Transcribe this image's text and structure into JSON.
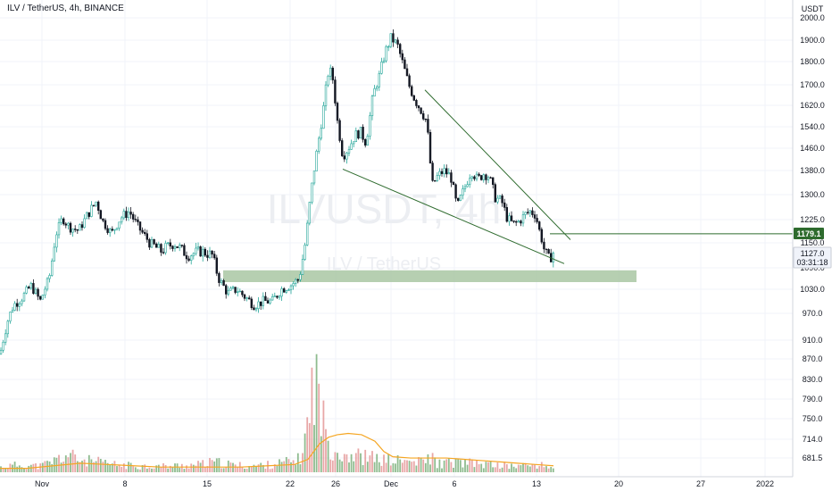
{
  "header": {
    "title": "ILV / TetherUS, 4h, BINANCE"
  },
  "watermark": {
    "symbol": "ILVUSDT, 4h",
    "name": "ILV / TetherUS"
  },
  "price_axis": {
    "currency": "USDT",
    "ticks": [
      "2000.0",
      "1900.0",
      "1800.0",
      "1700.0",
      "1620.0",
      "1540.0",
      "1460.0",
      "1380.0",
      "1300.0",
      "1225.0",
      "1150.0",
      "1090.0",
      "1030.0",
      "970.0",
      "910.0",
      "870.0",
      "830.0",
      "790.0",
      "750.0",
      "714.0",
      "681.5"
    ],
    "level_label": "1179.1",
    "last_price": "1127.0",
    "countdown": "03:31:18"
  },
  "time_axis": {
    "ticks": [
      "Nov",
      "8",
      "15",
      "22",
      "26",
      "Dec",
      "6",
      "13",
      "20",
      "27",
      "2022"
    ]
  },
  "colors": {
    "up": "#26a69a",
    "down": "#131722",
    "volume_up": "#6aa56a",
    "volume_down": "#e08a8a",
    "volume_ma": "#f5a623",
    "trendline": "#2e6b2e",
    "support_zone": "#a9c7a3",
    "grid": "#f0f3fa"
  },
  "chart_data": {
    "type": "candlestick",
    "title": "ILV / TetherUS, 4h, BINANCE",
    "ylabel": "USDT",
    "ylim": [
      650,
      2050
    ],
    "xlim": [
      0,
      925
    ],
    "x_label_positions": [
      47,
      140,
      232,
      325,
      376,
      438,
      509,
      601,
      693,
      785,
      857
    ],
    "close_path": [
      [
        0,
        880
      ],
      [
        8,
        950
      ],
      [
        15,
        990
      ],
      [
        25,
        1010
      ],
      [
        35,
        1040
      ],
      [
        45,
        1000
      ],
      [
        55,
        1060
      ],
      [
        63,
        1180
      ],
      [
        70,
        1230
      ],
      [
        78,
        1200
      ],
      [
        88,
        1190
      ],
      [
        98,
        1240
      ],
      [
        108,
        1280
      ],
      [
        115,
        1220
      ],
      [
        125,
        1180
      ],
      [
        135,
        1230
      ],
      [
        145,
        1250
      ],
      [
        155,
        1200
      ],
      [
        168,
        1150
      ],
      [
        180,
        1130
      ],
      [
        195,
        1150
      ],
      [
        210,
        1120
      ],
      [
        225,
        1130
      ],
      [
        238,
        1120
      ],
      [
        245,
        1060
      ],
      [
        255,
        1020
      ],
      [
        265,
        1030
      ],
      [
        275,
        1010
      ],
      [
        285,
        990
      ],
      [
        295,
        1000
      ],
      [
        305,
        1000
      ],
      [
        315,
        1030
      ],
      [
        325,
        1040
      ],
      [
        335,
        1060
      ],
      [
        342,
        1150
      ],
      [
        348,
        1300
      ],
      [
        355,
        1450
      ],
      [
        362,
        1600
      ],
      [
        368,
        1760
      ],
      [
        372,
        1750
      ],
      [
        378,
        1560
      ],
      [
        384,
        1430
      ],
      [
        392,
        1470
      ],
      [
        398,
        1510
      ],
      [
        404,
        1520
      ],
      [
        410,
        1480
      ],
      [
        418,
        1660
      ],
      [
        425,
        1740
      ],
      [
        432,
        1850
      ],
      [
        438,
        1910
      ],
      [
        445,
        1880
      ],
      [
        452,
        1780
      ],
      [
        458,
        1700
      ],
      [
        465,
        1640
      ],
      [
        472,
        1600
      ],
      [
        478,
        1560
      ],
      [
        484,
        1330
      ],
      [
        490,
        1360
      ],
      [
        497,
        1380
      ],
      [
        505,
        1360
      ],
      [
        512,
        1260
      ],
      [
        520,
        1320
      ],
      [
        528,
        1380
      ],
      [
        535,
        1350
      ],
      [
        542,
        1370
      ],
      [
        548,
        1360
      ],
      [
        555,
        1290
      ],
      [
        562,
        1280
      ],
      [
        568,
        1230
      ],
      [
        575,
        1210
      ],
      [
        582,
        1220
      ],
      [
        588,
        1240
      ],
      [
        594,
        1250
      ],
      [
        600,
        1240
      ],
      [
        605,
        1180
      ],
      [
        610,
        1130
      ],
      [
        615,
        1110
      ],
      [
        620,
        1127
      ]
    ],
    "volume_path": [
      [
        0,
        4
      ],
      [
        20,
        6
      ],
      [
        45,
        5
      ],
      [
        60,
        9
      ],
      [
        75,
        14
      ],
      [
        90,
        10
      ],
      [
        110,
        8
      ],
      [
        130,
        6
      ],
      [
        160,
        5
      ],
      [
        190,
        5
      ],
      [
        220,
        6
      ],
      [
        240,
        8
      ],
      [
        260,
        6
      ],
      [
        280,
        5
      ],
      [
        300,
        6
      ],
      [
        320,
        8
      ],
      [
        335,
        10
      ],
      [
        343,
        30
      ],
      [
        347,
        45
      ],
      [
        350,
        70
      ],
      [
        352,
        90
      ],
      [
        354,
        70
      ],
      [
        358,
        60
      ],
      [
        362,
        40
      ],
      [
        366,
        28
      ],
      [
        372,
        22
      ],
      [
        380,
        16
      ],
      [
        395,
        14
      ],
      [
        410,
        12
      ],
      [
        430,
        10
      ],
      [
        450,
        9
      ],
      [
        470,
        8
      ],
      [
        484,
        12
      ],
      [
        490,
        7
      ],
      [
        510,
        8
      ],
      [
        530,
        7
      ],
      [
        555,
        6
      ],
      [
        575,
        5
      ],
      [
        600,
        6
      ],
      [
        620,
        4
      ]
    ],
    "volume_ma": [
      [
        0,
        3
      ],
      [
        30,
        3
      ],
      [
        60,
        5
      ],
      [
        90,
        7
      ],
      [
        120,
        6
      ],
      [
        150,
        5
      ],
      [
        180,
        4
      ],
      [
        210,
        4
      ],
      [
        240,
        4
      ],
      [
        270,
        4
      ],
      [
        300,
        5
      ],
      [
        330,
        6
      ],
      [
        345,
        10
      ],
      [
        358,
        22
      ],
      [
        368,
        27
      ],
      [
        378,
        29
      ],
      [
        390,
        30
      ],
      [
        405,
        29
      ],
      [
        420,
        24
      ],
      [
        430,
        16
      ],
      [
        440,
        12
      ],
      [
        460,
        11
      ],
      [
        480,
        11
      ],
      [
        500,
        11
      ],
      [
        520,
        10
      ],
      [
        540,
        9
      ],
      [
        560,
        8
      ],
      [
        580,
        7
      ],
      [
        600,
        6
      ],
      [
        620,
        5
      ]
    ],
    "trendlines": [
      {
        "from": [
          384,
          1385
        ],
        "to": [
          632,
          1100
        ]
      },
      {
        "from": [
          476,
          1680
        ],
        "to": [
          639,
          1160
        ]
      }
    ],
    "support_zone": {
      "x": [
        250,
        713
      ],
      "y": [
        1050,
        1083
      ]
    },
    "horizontal_level": {
      "value": 1179.1,
      "x_start": 616
    }
  }
}
